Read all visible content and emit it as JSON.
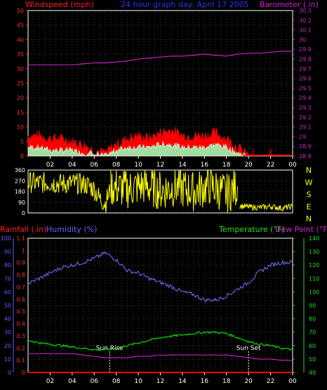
{
  "chart_data": [
    {
      "type": "line",
      "title": "24 hour graph day:  April 17 2005",
      "left_label": "Windspeed (mph)",
      "right_label": "Barometer (.in)",
      "x_ticks": [
        "02",
        "04",
        "06",
        "08",
        "10",
        "12",
        "14",
        "16",
        "18",
        "20",
        "22",
        "00"
      ],
      "y_left_ticks": [
        "0",
        "5",
        "10",
        "15",
        "20",
        "25",
        "30",
        "35",
        "40",
        "45",
        "50"
      ],
      "y_left_range": [
        0,
        50
      ],
      "y_right_ticks": [
        "28.8",
        "28.9",
        "29",
        "29.1",
        "29.2",
        "29.3",
        "29.4",
        "29.5",
        "29.6",
        "29.7",
        "29.8",
        "29.9",
        "30",
        "30.1",
        "30.2",
        "30.3"
      ],
      "y_right_range": [
        28.8,
        30.3
      ],
      "grid": true,
      "x_hours": [
        0,
        1,
        2,
        3,
        4,
        5,
        6,
        7,
        8,
        9,
        10,
        11,
        12,
        13,
        14,
        15,
        16,
        17,
        18,
        19,
        20,
        21,
        22,
        23,
        24
      ],
      "series": [
        {
          "name": "Gust",
          "axis": "left",
          "color": "#ff0000",
          "values": [
            7,
            7,
            6,
            6,
            5,
            4,
            2,
            1,
            4,
            6,
            7,
            6,
            8,
            9,
            7,
            7,
            7,
            8,
            6,
            3,
            0,
            0,
            0,
            0,
            0
          ]
        },
        {
          "name": "Windspeed",
          "axis": "left",
          "color": "#ffffff",
          "values": [
            3,
            3,
            2,
            2,
            2,
            1,
            1,
            0,
            2,
            3,
            3,
            3,
            4,
            4,
            3,
            3,
            3,
            4,
            3,
            1,
            0,
            0,
            0,
            0,
            0
          ]
        },
        {
          "name": "Barometer",
          "axis": "right",
          "color": "#c020c0",
          "values": [
            29.74,
            29.74,
            29.74,
            29.74,
            29.74,
            29.75,
            29.76,
            29.76,
            29.77,
            29.78,
            29.8,
            29.81,
            29.82,
            29.83,
            29.83,
            29.84,
            29.85,
            29.84,
            29.83,
            29.85,
            29.86,
            29.86,
            29.87,
            29.88,
            29.88
          ]
        }
      ]
    },
    {
      "type": "line",
      "y_left_ticks": [
        "0",
        "90",
        "180",
        "270",
        "360"
      ],
      "y_left_range": [
        0,
        360
      ],
      "y_right_labels": [
        "N",
        "W",
        "S",
        "E",
        "N"
      ],
      "x_ticks": [
        "02",
        "04",
        "06",
        "08",
        "10",
        "12",
        "14",
        "16",
        "18",
        "20",
        "22",
        "00"
      ],
      "grid": true,
      "series": [
        {
          "name": "Wind Direction",
          "color": "#ffff00",
          "segments": [
            {
              "x": [
                0,
                1,
                2,
                3,
                4,
                5,
                5.5,
                6,
                6.5,
                7,
                7.5
              ],
              "y": [
                260,
                250,
                255,
                245,
                250,
                240,
                230,
                200,
                120,
                80,
                200
              ],
              "noise": 90
            },
            {
              "x": [
                7.5,
                9,
                10.5,
                12,
                13.5,
                15,
                16.5,
                18,
                19
              ],
              "y": [
                220,
                200,
                230,
                190,
                220,
                180,
                230,
                160,
                220
              ],
              "noise": 170
            },
            {
              "x": [
                19.2,
                20,
                21,
                22,
                23,
                24
              ],
              "y": [
                60,
                50,
                45,
                55,
                40,
                55
              ],
              "noise": 25
            }
          ]
        }
      ]
    },
    {
      "type": "line",
      "left_label": "Rainfall (.in)",
      "humidity_label": "Humidity (%)",
      "right_label_temp": "Temperature (°F)",
      "right_label_dew": "Dew Point (°F)",
      "x_ticks": [
        "02",
        "04",
        "06",
        "08",
        "10",
        "12",
        "14",
        "16",
        "18",
        "20",
        "22",
        "00"
      ],
      "y_humidity_ticks": [
        "0",
        "10",
        "20",
        "30",
        "40",
        "50",
        "60",
        "70",
        "80",
        "90",
        "100"
      ],
      "y_humidity_range": [
        0,
        100
      ],
      "y_rain_ticks": [
        "0",
        "0.1",
        "0.2",
        "0.3",
        "0.4",
        "0.5",
        "0.6",
        "0.7",
        "0.8",
        "0.9",
        "1",
        "1.1"
      ],
      "y_rain_range": [
        0,
        1.1
      ],
      "y_temp_ticks": [
        "40",
        "50",
        "60",
        "70",
        "80",
        "90",
        "100",
        "110",
        "120",
        "130",
        "140"
      ],
      "y_temp_range": [
        40,
        140
      ],
      "sunrise_label": "Sun Rise",
      "sunset_label": "Sun Set",
      "sunrise_hour": 7.4,
      "sunset_hour": 20.0,
      "grid": true,
      "x_hours": [
        0,
        1,
        2,
        3,
        4,
        5,
        6,
        7,
        8,
        9,
        10,
        11,
        12,
        13,
        14,
        15,
        16,
        17,
        18,
        19,
        20,
        21,
        22,
        23,
        24
      ],
      "series": [
        {
          "name": "Humidity",
          "axis": "humidity",
          "color": "#7070ff",
          "values": [
            66,
            70,
            74,
            78,
            80,
            82,
            85,
            89,
            84,
            76,
            74,
            70,
            67,
            64,
            60,
            58,
            54,
            54,
            57,
            62,
            67,
            75,
            80,
            82,
            82
          ]
        },
        {
          "name": "Temperature",
          "axis": "temp",
          "color": "#00ff00",
          "values": [
            64,
            62,
            61,
            60,
            59,
            58,
            57,
            57,
            58,
            60,
            62,
            64,
            66,
            67,
            68,
            69,
            70,
            70,
            69,
            66,
            63,
            61,
            60,
            58,
            57
          ]
        },
        {
          "name": "Dew Point",
          "axis": "temp",
          "color": "#e020e0",
          "values": [
            54,
            54,
            54,
            54,
            54,
            53,
            52,
            51,
            51,
            51,
            52,
            52,
            53,
            53,
            53,
            53,
            53,
            53,
            53,
            52,
            51,
            50,
            50,
            49,
            49
          ]
        },
        {
          "name": "Rainfall",
          "axis": "rain",
          "color": "#ff0000",
          "values": [
            0,
            0,
            0,
            0,
            0,
            0,
            0,
            0,
            0,
            0,
            0,
            0,
            0,
            0,
            0,
            0,
            0,
            0,
            0,
            0,
            0,
            0,
            0,
            0,
            0
          ]
        }
      ]
    }
  ]
}
